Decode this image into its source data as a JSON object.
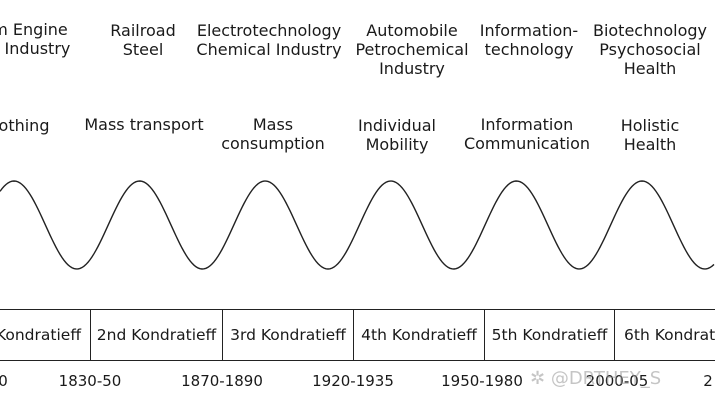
{
  "waves": [
    {
      "industries": [
        "m Engine",
        "e Industry"
      ],
      "field": [
        "othing"
      ]
    },
    {
      "industries": [
        "Railroad",
        "Steel"
      ],
      "field": [
        "Mass transport"
      ]
    },
    {
      "industries": [
        "Electrotechnology",
        "Chemical Industry"
      ],
      "field": [
        "Mass",
        "consumption"
      ]
    },
    {
      "industries": [
        "Automobile",
        "Petrochemical",
        "Industry"
      ],
      "field": [
        "Individual",
        "Mobility"
      ]
    },
    {
      "industries": [
        "Information-",
        "technology"
      ],
      "field": [
        "Information",
        "Communication"
      ]
    },
    {
      "industries": [
        "Biotechnology",
        "Psychosocial",
        "Health"
      ],
      "field": [
        "Holistic",
        "Health"
      ]
    }
  ],
  "cycles": [
    "Kondratieff",
    "2nd Kondratieff",
    "3rd Kondratieff",
    "4th Kondratieff",
    "5th Kondratieff",
    "6th Kondrat"
  ],
  "years": [
    "0",
    "1830-50",
    "1870-1890",
    "1920-1935",
    "1950-1980",
    "2000-05",
    "2"
  ],
  "watermark": "@DRTHEY_S",
  "colors": {
    "ink": "#1a1a1a",
    "line": "#222222"
  }
}
